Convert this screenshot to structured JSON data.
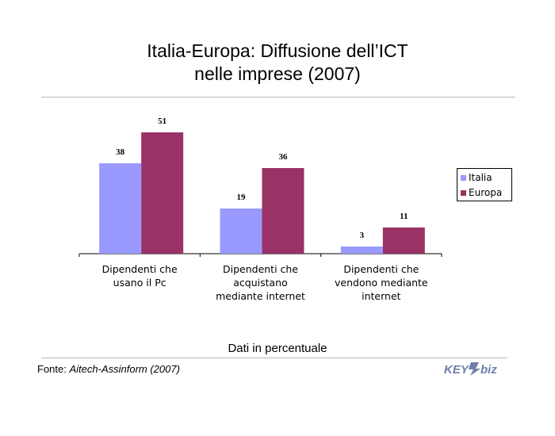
{
  "header": {
    "title_line1": "Italia-Europa: Diffusione dell’ICT",
    "title_line2": "nelle imprese (2007)"
  },
  "footer": {
    "subtitle": "Dati in percentuale",
    "source_label": "Fonte:",
    "source_name": "Aitech-Assinform (2007)",
    "logo_text": "KEY4biz"
  },
  "colors": {
    "italia": "#9999ff",
    "europa": "#993366",
    "axis": "#000000"
  },
  "chart_data": {
    "type": "bar",
    "categories": [
      [
        "Dipendenti che",
        "usano il Pc"
      ],
      [
        "Dipendenti che",
        "acquistano",
        "mediante internet"
      ],
      [
        "Dipendenti che",
        "vendono mediante",
        "internet"
      ]
    ],
    "series": [
      {
        "name": "Italia",
        "values": [
          38,
          19,
          3
        ]
      },
      {
        "name": "Europa",
        "values": [
          51,
          36,
          11
        ]
      }
    ],
    "ylim": [
      0,
      60
    ],
    "grid": false,
    "legend": "right",
    "xlabel": "",
    "ylabel": ""
  }
}
